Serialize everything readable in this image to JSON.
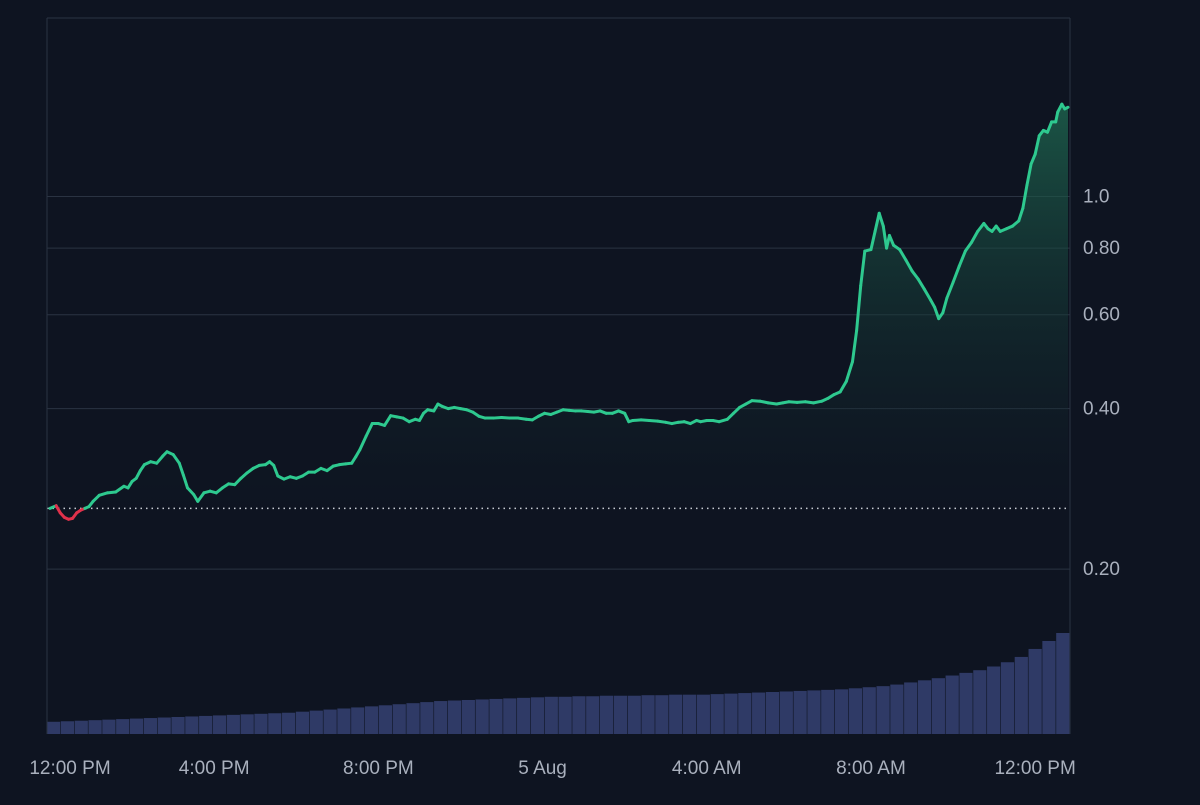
{
  "chart_data": {
    "type": "area",
    "scale": "log",
    "colors": {
      "background": "#0e1421",
      "grid": "#2a3342",
      "up_line": "#2ec98f",
      "down_line": "#e0314b",
      "area_top": "#1f6b52",
      "volume": "#2f3a66",
      "axis_text": "#a9b0bd",
      "baseline": "#c8ccd4"
    },
    "y_ticks": [
      {
        "value": 1.0,
        "label": "1.0"
      },
      {
        "value": 0.8,
        "label": "0.80"
      },
      {
        "value": 0.6,
        "label": "0.60"
      },
      {
        "value": 0.4,
        "label": "0.40"
      },
      {
        "value": 0.2,
        "label": "0.20"
      }
    ],
    "x_ticks": [
      {
        "t": 0,
        "label": "12:00 PM"
      },
      {
        "t": 4,
        "label": "4:00 PM"
      },
      {
        "t": 8,
        "label": "8:00 PM"
      },
      {
        "t": 12,
        "label": "5 Aug"
      },
      {
        "t": 16,
        "label": "4:00 AM"
      },
      {
        "t": 20,
        "label": "8:00 AM"
      },
      {
        "t": 24,
        "label": "12:00 PM"
      }
    ],
    "x_range": [
      0,
      24.8
    ],
    "y_range": [
      0.138,
      1.55
    ],
    "baseline_value": 0.26,
    "series": [
      {
        "points": [
          [
            0.0,
            0.26
          ],
          [
            0.15,
            0.263
          ],
          [
            0.25,
            0.255
          ],
          [
            0.35,
            0.25
          ],
          [
            0.45,
            0.248
          ],
          [
            0.55,
            0.249
          ],
          [
            0.65,
            0.255
          ],
          [
            0.75,
            0.258
          ],
          [
            0.85,
            0.26
          ],
          [
            0.95,
            0.262
          ],
          [
            1.05,
            0.268
          ],
          [
            1.2,
            0.275
          ],
          [
            1.4,
            0.278
          ],
          [
            1.6,
            0.279
          ],
          [
            1.8,
            0.286
          ],
          [
            1.9,
            0.284
          ],
          [
            2.0,
            0.292
          ],
          [
            2.1,
            0.296
          ],
          [
            2.2,
            0.306
          ],
          [
            2.3,
            0.314
          ],
          [
            2.45,
            0.318
          ],
          [
            2.6,
            0.316
          ],
          [
            2.75,
            0.326
          ],
          [
            2.85,
            0.332
          ],
          [
            3.0,
            0.328
          ],
          [
            3.15,
            0.316
          ],
          [
            3.25,
            0.3
          ],
          [
            3.35,
            0.284
          ],
          [
            3.5,
            0.276
          ],
          [
            3.6,
            0.268
          ],
          [
            3.75,
            0.278
          ],
          [
            3.9,
            0.28
          ],
          [
            4.05,
            0.278
          ],
          [
            4.2,
            0.284
          ],
          [
            4.35,
            0.289
          ],
          [
            4.5,
            0.288
          ],
          [
            4.65,
            0.296
          ],
          [
            4.8,
            0.303
          ],
          [
            4.95,
            0.309
          ],
          [
            5.1,
            0.313
          ],
          [
            5.25,
            0.314
          ],
          [
            5.35,
            0.318
          ],
          [
            5.45,
            0.313
          ],
          [
            5.55,
            0.299
          ],
          [
            5.7,
            0.295
          ],
          [
            5.85,
            0.298
          ],
          [
            6.0,
            0.296
          ],
          [
            6.15,
            0.299
          ],
          [
            6.3,
            0.304
          ],
          [
            6.45,
            0.304
          ],
          [
            6.6,
            0.309
          ],
          [
            6.75,
            0.306
          ],
          [
            6.9,
            0.312
          ],
          [
            7.05,
            0.314
          ],
          [
            7.2,
            0.315
          ],
          [
            7.35,
            0.316
          ],
          [
            7.45,
            0.325
          ],
          [
            7.55,
            0.335
          ],
          [
            7.7,
            0.355
          ],
          [
            7.85,
            0.375
          ],
          [
            8.0,
            0.375
          ],
          [
            8.15,
            0.372
          ],
          [
            8.3,
            0.388
          ],
          [
            8.45,
            0.386
          ],
          [
            8.6,
            0.384
          ],
          [
            8.75,
            0.378
          ],
          [
            8.9,
            0.382
          ],
          [
            9.0,
            0.38
          ],
          [
            9.1,
            0.392
          ],
          [
            9.2,
            0.398
          ],
          [
            9.35,
            0.396
          ],
          [
            9.45,
            0.408
          ],
          [
            9.55,
            0.404
          ],
          [
            9.7,
            0.4
          ],
          [
            9.85,
            0.402
          ],
          [
            10.0,
            0.4
          ],
          [
            10.15,
            0.398
          ],
          [
            10.3,
            0.394
          ],
          [
            10.45,
            0.387
          ],
          [
            10.6,
            0.384
          ],
          [
            10.8,
            0.384
          ],
          [
            11.0,
            0.385
          ],
          [
            11.2,
            0.384
          ],
          [
            11.4,
            0.384
          ],
          [
            11.6,
            0.382
          ],
          [
            11.75,
            0.381
          ],
          [
            11.9,
            0.387
          ],
          [
            12.05,
            0.392
          ],
          [
            12.2,
            0.39
          ],
          [
            12.35,
            0.394
          ],
          [
            12.5,
            0.398
          ],
          [
            12.65,
            0.397
          ],
          [
            12.8,
            0.396
          ],
          [
            12.95,
            0.396
          ],
          [
            13.1,
            0.395
          ],
          [
            13.25,
            0.394
          ],
          [
            13.4,
            0.396
          ],
          [
            13.55,
            0.392
          ],
          [
            13.7,
            0.392
          ],
          [
            13.85,
            0.396
          ],
          [
            14.0,
            0.392
          ],
          [
            14.1,
            0.378
          ],
          [
            14.2,
            0.38
          ],
          [
            14.4,
            0.381
          ],
          [
            14.6,
            0.38
          ],
          [
            14.8,
            0.379
          ],
          [
            15.0,
            0.377
          ],
          [
            15.15,
            0.375
          ],
          [
            15.3,
            0.377
          ],
          [
            15.45,
            0.378
          ],
          [
            15.6,
            0.375
          ],
          [
            15.75,
            0.38
          ],
          [
            15.85,
            0.378
          ],
          [
            16.0,
            0.38
          ],
          [
            16.15,
            0.38
          ],
          [
            16.3,
            0.378
          ],
          [
            16.5,
            0.382
          ],
          [
            16.65,
            0.392
          ],
          [
            16.8,
            0.402
          ],
          [
            16.95,
            0.408
          ],
          [
            17.1,
            0.414
          ],
          [
            17.3,
            0.413
          ],
          [
            17.5,
            0.41
          ],
          [
            17.7,
            0.408
          ],
          [
            17.85,
            0.41
          ],
          [
            18.0,
            0.412
          ],
          [
            18.2,
            0.411
          ],
          [
            18.4,
            0.412
          ],
          [
            18.6,
            0.41
          ],
          [
            18.8,
            0.413
          ],
          [
            18.95,
            0.418
          ],
          [
            19.1,
            0.425
          ],
          [
            19.25,
            0.43
          ],
          [
            19.4,
            0.45
          ],
          [
            19.55,
            0.49
          ],
          [
            19.65,
            0.56
          ],
          [
            19.75,
            0.68
          ],
          [
            19.85,
            0.79
          ],
          [
            20.0,
            0.795
          ],
          [
            20.1,
            0.86
          ],
          [
            20.2,
            0.93
          ],
          [
            20.3,
            0.88
          ],
          [
            20.38,
            0.8
          ],
          [
            20.45,
            0.845
          ],
          [
            20.55,
            0.81
          ],
          [
            20.7,
            0.795
          ],
          [
            20.85,
            0.76
          ],
          [
            21.0,
            0.725
          ],
          [
            21.15,
            0.7
          ],
          [
            21.3,
            0.67
          ],
          [
            21.45,
            0.64
          ],
          [
            21.55,
            0.62
          ],
          [
            21.65,
            0.59
          ],
          [
            21.75,
            0.605
          ],
          [
            21.85,
            0.645
          ],
          [
            22.0,
            0.69
          ],
          [
            22.15,
            0.74
          ],
          [
            22.3,
            0.79
          ],
          [
            22.45,
            0.82
          ],
          [
            22.6,
            0.86
          ],
          [
            22.75,
            0.89
          ],
          [
            22.85,
            0.87
          ],
          [
            22.95,
            0.86
          ],
          [
            23.05,
            0.88
          ],
          [
            23.15,
            0.86
          ],
          [
            23.3,
            0.87
          ],
          [
            23.45,
            0.88
          ],
          [
            23.6,
            0.9
          ],
          [
            23.7,
            0.95
          ],
          [
            23.8,
            1.05
          ],
          [
            23.9,
            1.15
          ],
          [
            24.0,
            1.2
          ],
          [
            24.1,
            1.3
          ],
          [
            24.2,
            1.33
          ],
          [
            24.3,
            1.32
          ],
          [
            24.4,
            1.38
          ],
          [
            24.5,
            1.38
          ],
          [
            24.55,
            1.44
          ],
          [
            24.65,
            1.49
          ],
          [
            24.72,
            1.46
          ],
          [
            24.8,
            1.47
          ]
        ]
      }
    ],
    "volume": [
      0.23,
      0.24,
      0.25,
      0.26,
      0.27,
      0.28,
      0.29,
      0.3,
      0.31,
      0.32,
      0.33,
      0.34,
      0.35,
      0.36,
      0.37,
      0.38,
      0.39,
      0.4,
      0.42,
      0.44,
      0.46,
      0.48,
      0.5,
      0.52,
      0.54,
      0.56,
      0.58,
      0.6,
      0.62,
      0.63,
      0.64,
      0.65,
      0.66,
      0.67,
      0.68,
      0.69,
      0.7,
      0.7,
      0.71,
      0.71,
      0.72,
      0.72,
      0.72,
      0.73,
      0.73,
      0.74,
      0.74,
      0.74,
      0.75,
      0.76,
      0.77,
      0.78,
      0.79,
      0.8,
      0.81,
      0.82,
      0.83,
      0.84,
      0.86,
      0.88,
      0.9,
      0.93,
      0.97,
      1.01,
      1.05,
      1.1,
      1.15,
      1.2,
      1.27,
      1.35,
      1.45,
      1.6,
      1.75,
      1.9
    ]
  }
}
